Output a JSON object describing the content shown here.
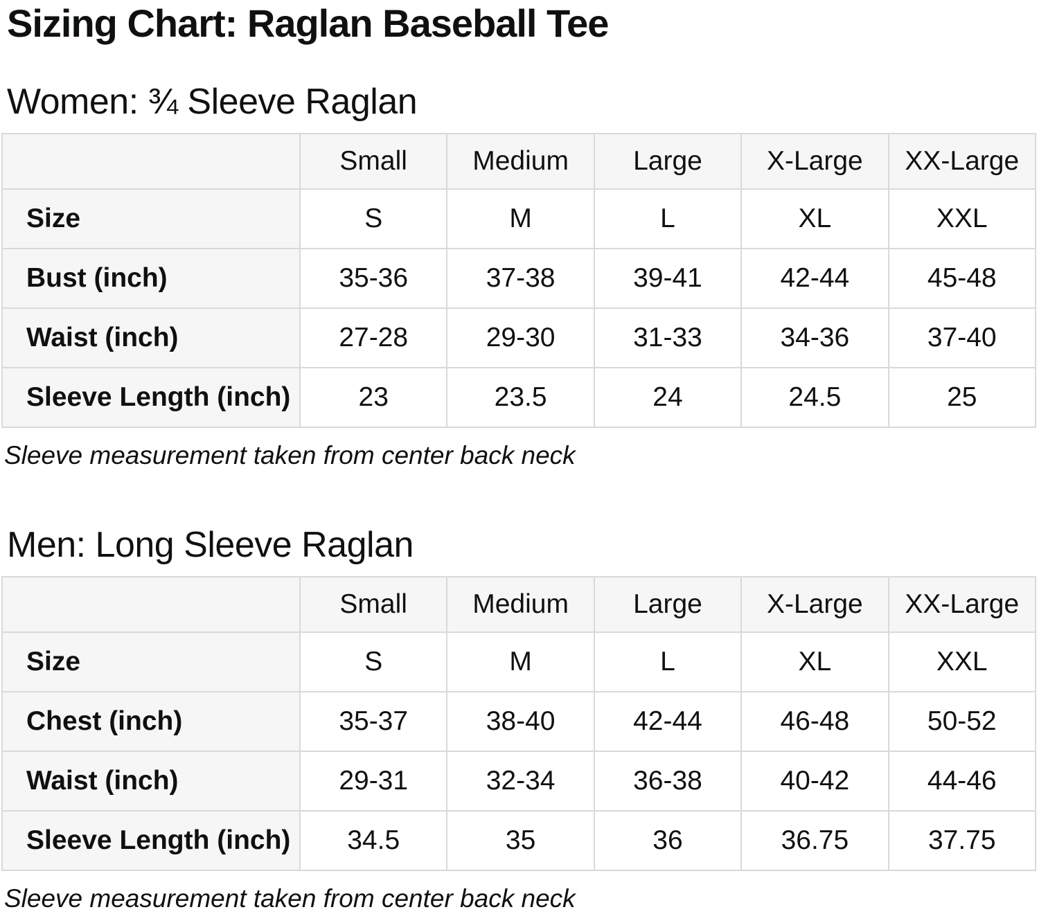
{
  "title": "Sizing Chart: Raglan Baseball Tee",
  "colors": {
    "header_cell_bg": "#f6f6f6",
    "table_border": "#d9d9d9",
    "text": "#0f1111",
    "page_bg": "#ffffff"
  },
  "women": {
    "heading": "Women: ¾ Sleeve Raglan",
    "columns": [
      "Small",
      "Medium",
      "Large",
      "X-Large",
      "XX-Large"
    ],
    "rows": [
      {
        "label": "Size",
        "values": [
          "S",
          "M",
          "L",
          "XL",
          "XXL"
        ]
      },
      {
        "label": "Bust (inch)",
        "values": [
          "35-36",
          "37-38",
          "39-41",
          "42-44",
          "45-48"
        ]
      },
      {
        "label": "Waist (inch)",
        "values": [
          "27-28",
          "29-30",
          "31-33",
          "34-36",
          "37-40"
        ]
      },
      {
        "label": "Sleeve Length (inch)",
        "values": [
          "23",
          "23.5",
          "24",
          "24.5",
          "25"
        ]
      }
    ],
    "note": "Sleeve measurement taken from center back neck"
  },
  "men": {
    "heading": "Men: Long Sleeve Raglan",
    "columns": [
      "Small",
      "Medium",
      "Large",
      "X-Large",
      "XX-Large"
    ],
    "rows": [
      {
        "label": "Size",
        "values": [
          "S",
          "M",
          "L",
          "XL",
          "XXL"
        ]
      },
      {
        "label": "Chest (inch)",
        "values": [
          "35-37",
          "38-40",
          "42-44",
          "46-48",
          "50-52"
        ]
      },
      {
        "label": "Waist (inch)",
        "values": [
          "29-31",
          "32-34",
          "36-38",
          "40-42",
          "44-46"
        ]
      },
      {
        "label": "Sleeve Length (inch)",
        "values": [
          "34.5",
          "35",
          "36",
          "36.75",
          "37.75"
        ]
      }
    ],
    "note": "Sleeve measurement taken from center back neck"
  }
}
